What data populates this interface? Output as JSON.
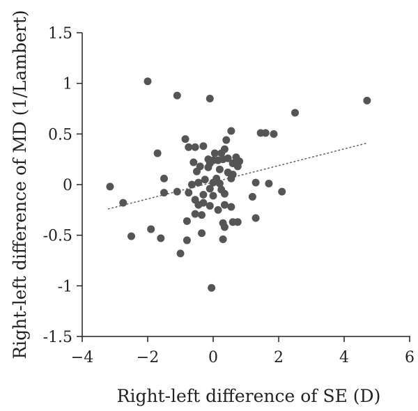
{
  "chart_data": {
    "type": "scatter",
    "xlabel": "Right-left difference of SE (D)",
    "ylabel": "Right-left difference of MD (1/Lambert)",
    "xlim": [
      -4,
      6
    ],
    "ylim": [
      -1.5,
      1.5
    ],
    "x_ticks": [
      -4,
      -2,
      0,
      2,
      4,
      6
    ],
    "y_ticks": [
      1.5,
      1,
      0.5,
      0,
      -0.5,
      -1,
      -1.5
    ],
    "x_tick_labels": [
      "−4",
      "−2",
      "0",
      "2",
      "4",
      "6"
    ],
    "y_tick_labels": [
      "1.5",
      "1",
      "0.5",
      "0",
      "-0.5",
      "-1",
      "-1.5"
    ],
    "grid": false,
    "legend": "none",
    "colors": {
      "points": "#555555",
      "trendline": "#666666",
      "axis": "#222222"
    },
    "trendline": {
      "style": "dotted",
      "x": [
        -3.2,
        4.7
      ],
      "y": [
        -0.24,
        0.41
      ]
    },
    "points": [
      [
        -2.0,
        1.02
      ],
      [
        -1.1,
        0.88
      ],
      [
        -0.1,
        0.85
      ],
      [
        2.5,
        0.71
      ],
      [
        4.7,
        0.83
      ],
      [
        0.55,
        0.53
      ],
      [
        1.45,
        0.51
      ],
      [
        1.6,
        0.51
      ],
      [
        1.85,
        0.5
      ],
      [
        -0.85,
        0.45
      ],
      [
        0.4,
        0.44
      ],
      [
        -0.75,
        0.37
      ],
      [
        -0.3,
        0.38
      ],
      [
        -0.55,
        0.37
      ],
      [
        0.35,
        0.35
      ],
      [
        0.05,
        0.31
      ],
      [
        0.25,
        0.31
      ],
      [
        -1.7,
        0.31
      ],
      [
        0.7,
        0.27
      ],
      [
        0.45,
        0.26
      ],
      [
        0.15,
        0.24
      ],
      [
        0.0,
        0.24
      ],
      [
        -0.15,
        0.25
      ],
      [
        0.3,
        0.25
      ],
      [
        0.8,
        0.23
      ],
      [
        -0.6,
        0.22
      ],
      [
        -0.1,
        0.21
      ],
      [
        0.6,
        0.21
      ],
      [
        -0.4,
        0.18
      ],
      [
        -0.15,
        0.17
      ],
      [
        0.75,
        0.18
      ],
      [
        0.2,
        0.15
      ],
      [
        0.45,
        0.12
      ],
      [
        -0.5,
        0.13
      ],
      [
        0.6,
        0.1
      ],
      [
        -1.5,
        0.06
      ],
      [
        0.55,
        0.06
      ],
      [
        0.1,
        0.06
      ],
      [
        -0.25,
        0.05
      ],
      [
        -0.45,
        0.02
      ],
      [
        0.0,
        0.02
      ],
      [
        0.2,
        0.01
      ],
      [
        -0.65,
        0.0
      ],
      [
        1.3,
        0.02
      ],
      [
        1.7,
        0.01
      ],
      [
        -3.15,
        -0.02
      ],
      [
        -0.1,
        -0.04
      ],
      [
        0.25,
        -0.05
      ],
      [
        -1.1,
        -0.07
      ],
      [
        -0.75,
        -0.08
      ],
      [
        -1.5,
        -0.08
      ],
      [
        2.1,
        -0.07
      ],
      [
        0.35,
        -0.09
      ],
      [
        -0.3,
        -0.1
      ],
      [
        0.0,
        -0.11
      ],
      [
        1.2,
        -0.12
      ],
      [
        -0.55,
        -0.15
      ],
      [
        -0.3,
        -0.18
      ],
      [
        -2.75,
        -0.18
      ],
      [
        0.35,
        -0.2
      ],
      [
        -0.45,
        -0.2
      ],
      [
        -0.1,
        -0.21
      ],
      [
        0.15,
        -0.25
      ],
      [
        0.55,
        -0.22
      ],
      [
        -0.35,
        -0.3
      ],
      [
        -0.55,
        -0.29
      ],
      [
        1.3,
        -0.33
      ],
      [
        0.3,
        -0.38
      ],
      [
        0.6,
        -0.37
      ],
      [
        0.75,
        -0.37
      ],
      [
        0.35,
        -0.42
      ],
      [
        -0.8,
        -0.36
      ],
      [
        -1.9,
        -0.44
      ],
      [
        -0.35,
        -0.48
      ],
      [
        -2.5,
        -0.51
      ],
      [
        -1.6,
        -0.53
      ],
      [
        0.3,
        -0.54
      ],
      [
        -0.8,
        -0.55
      ],
      [
        -1.0,
        -0.68
      ],
      [
        -0.05,
        -1.02
      ]
    ]
  }
}
